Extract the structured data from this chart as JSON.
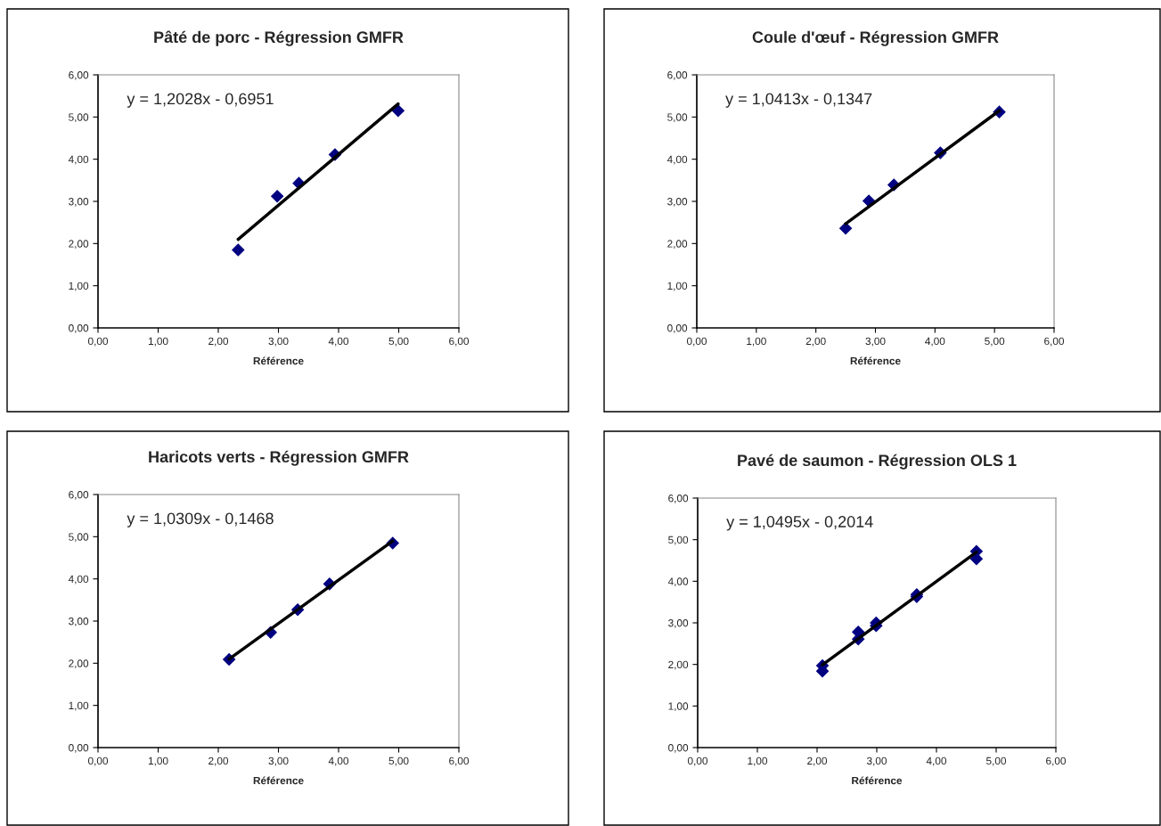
{
  "chart_data": [
    {
      "type": "scatter",
      "title": "Pâté de porc - Régression GMFR",
      "xlabel": "Référence",
      "annotations": [
        "y = 1,2028x - 0,6951"
      ],
      "marker": "diamond",
      "grid": false,
      "legend": false,
      "xlim": [
        0,
        6
      ],
      "ylim": [
        0,
        6
      ],
      "xticks": [
        {
          "value": 0,
          "label": "0,00"
        },
        {
          "value": 1,
          "label": "1,00"
        },
        {
          "value": 2,
          "label": "2,00"
        },
        {
          "value": 3,
          "label": "3,00"
        },
        {
          "value": 4,
          "label": "4,00"
        },
        {
          "value": 5,
          "label": "5,00"
        },
        {
          "value": 6,
          "label": "6,00"
        }
      ],
      "yticks": [
        {
          "value": 0,
          "label": "0,00"
        },
        {
          "value": 1,
          "label": "1,00"
        },
        {
          "value": 2,
          "label": "2,00"
        },
        {
          "value": 3,
          "label": "3,00"
        },
        {
          "value": 4,
          "label": "4,00"
        },
        {
          "value": 5,
          "label": "5,00"
        },
        {
          "value": 6,
          "label": "6,00"
        }
      ],
      "series": [
        {
          "color": "#000080",
          "x": [
            2.33,
            2.98,
            3.34,
            3.94,
            4.99
          ],
          "values": [
            1.85,
            3.12,
            3.43,
            4.11,
            5.15
          ]
        },
        {
          "type": "line",
          "color": "#000000",
          "marker": "none",
          "x": [
            2.33,
            4.99
          ],
          "values": [
            2.1,
            5.31
          ]
        }
      ]
    },
    {
      "type": "scatter",
      "title": "Coule d'œuf - Régression GMFR",
      "xlabel": "Référence",
      "annotations": [
        "y = 1,0413x - 0,1347"
      ],
      "marker": "diamond",
      "grid": false,
      "legend": false,
      "xlim": [
        0,
        6
      ],
      "ylim": [
        0,
        6
      ],
      "xticks": [
        {
          "value": 0,
          "label": "0,00"
        },
        {
          "value": 1,
          "label": "1,00"
        },
        {
          "value": 2,
          "label": "2,00"
        },
        {
          "value": 3,
          "label": "3,00"
        },
        {
          "value": 4,
          "label": "4,00"
        },
        {
          "value": 5,
          "label": "5,00"
        },
        {
          "value": 6,
          "label": "6,00"
        }
      ],
      "yticks": [
        {
          "value": 0,
          "label": "0,00"
        },
        {
          "value": 1,
          "label": "1,00"
        },
        {
          "value": 2,
          "label": "2,00"
        },
        {
          "value": 3,
          "label": "3,00"
        },
        {
          "value": 4,
          "label": "4,00"
        },
        {
          "value": 5,
          "label": "5,00"
        },
        {
          "value": 6,
          "label": "6,00"
        }
      ],
      "series": [
        {
          "color": "#000080",
          "x": [
            2.5,
            2.89,
            3.31,
            4.09,
            5.08
          ],
          "values": [
            2.36,
            3.01,
            3.39,
            4.15,
            5.12
          ]
        },
        {
          "type": "line",
          "color": "#000000",
          "marker": "none",
          "x": [
            2.5,
            5.08
          ],
          "values": [
            2.47,
            5.15
          ]
        }
      ]
    },
    {
      "type": "scatter",
      "title": "Haricots verts - Régression GMFR",
      "xlabel": "Référence",
      "annotations": [
        "y = 1,0309x - 0,1468"
      ],
      "marker": "diamond",
      "grid": false,
      "legend": false,
      "xlim": [
        0,
        6
      ],
      "ylim": [
        0,
        6
      ],
      "xticks": [
        {
          "value": 0,
          "label": "0,00"
        },
        {
          "value": 1,
          "label": "1,00"
        },
        {
          "value": 2,
          "label": "2,00"
        },
        {
          "value": 3,
          "label": "3,00"
        },
        {
          "value": 4,
          "label": "4,00"
        },
        {
          "value": 5,
          "label": "5,00"
        },
        {
          "value": 6,
          "label": "6,00"
        }
      ],
      "yticks": [
        {
          "value": 0,
          "label": "0,00"
        },
        {
          "value": 1,
          "label": "1,00"
        },
        {
          "value": 2,
          "label": "2,00"
        },
        {
          "value": 3,
          "label": "3,00"
        },
        {
          "value": 4,
          "label": "4,00"
        },
        {
          "value": 5,
          "label": "5,00"
        },
        {
          "value": 6,
          "label": "6,00"
        }
      ],
      "series": [
        {
          "color": "#000080",
          "x": [
            2.18,
            2.87,
            3.32,
            3.85,
            4.9
          ],
          "values": [
            2.09,
            2.73,
            3.27,
            3.88,
            4.85
          ]
        },
        {
          "type": "line",
          "color": "#000000",
          "marker": "none",
          "x": [
            2.18,
            4.9
          ],
          "values": [
            2.1,
            4.9
          ]
        }
      ]
    },
    {
      "type": "scatter",
      "title": "Pavé de saumon - Régression OLS 1",
      "xlabel": "Référence",
      "annotations": [
        "y = 1,0495x - 0,2014"
      ],
      "marker": "diamond",
      "grid": false,
      "legend": false,
      "xlim": [
        0,
        6
      ],
      "ylim": [
        0,
        6
      ],
      "xticks": [
        {
          "value": 0,
          "label": "0,00"
        },
        {
          "value": 1,
          "label": "1,00"
        },
        {
          "value": 2,
          "label": "2,00"
        },
        {
          "value": 3,
          "label": "3,00"
        },
        {
          "value": 4,
          "label": "4,00"
        },
        {
          "value": 5,
          "label": "5,00"
        },
        {
          "value": 6,
          "label": "6,00"
        }
      ],
      "yticks": [
        {
          "value": 0,
          "label": "0,00"
        },
        {
          "value": 1,
          "label": "1,00"
        },
        {
          "value": 2,
          "label": "2,00"
        },
        {
          "value": 3,
          "label": "3,00"
        },
        {
          "value": 4,
          "label": "4,00"
        },
        {
          "value": 5,
          "label": "5,00"
        },
        {
          "value": 6,
          "label": "6,00"
        }
      ],
      "series": [
        {
          "color": "#000080",
          "x": [
            2.09,
            2.09,
            2.69,
            2.69,
            2.99,
            2.99,
            3.67,
            3.67,
            4.67,
            4.67
          ],
          "values": [
            1.97,
            1.84,
            2.78,
            2.61,
            3.0,
            2.93,
            3.68,
            3.63,
            4.72,
            4.54
          ]
        },
        {
          "type": "line",
          "color": "#000000",
          "marker": "none",
          "x": [
            2.09,
            4.67
          ],
          "values": [
            1.99,
            4.7
          ]
        }
      ]
    }
  ]
}
